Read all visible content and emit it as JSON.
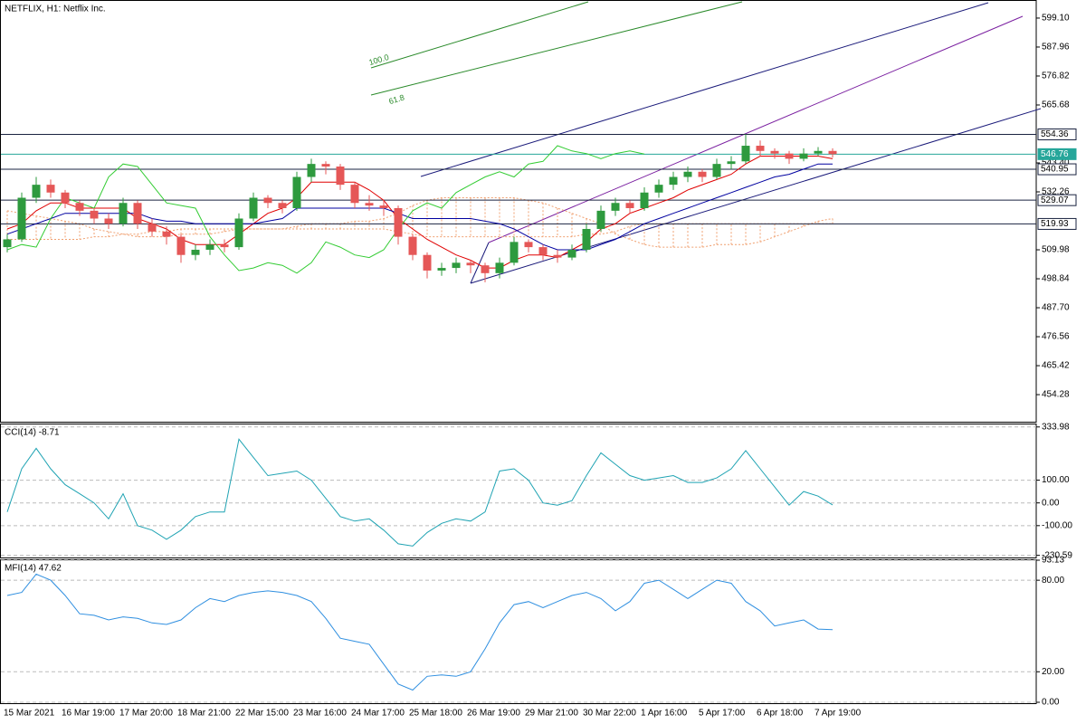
{
  "chart_data": [
    {
      "type": "candlestick",
      "title": "NETFLIX, H1:  Netflix Inc.",
      "categories": [
        "15 Mar 2021",
        null,
        null,
        null,
        "16 Mar 19:00",
        null,
        null,
        null,
        "17 Mar 20:00",
        null,
        null,
        null,
        "18 Mar 21:00",
        null,
        null,
        null,
        "22 Mar 15:00",
        null,
        null,
        null,
        "23 Mar 16:00",
        null,
        null,
        null,
        "24 Mar 17:00",
        null,
        null,
        null,
        "25 Mar 18:00",
        null,
        null,
        null,
        "26 Mar 19:00",
        null,
        null,
        null,
        "29 Mar 21:00",
        null,
        null,
        null,
        "30 Mar 22:00",
        null,
        null,
        null,
        "1 Apr 16:00",
        null,
        null,
        null,
        "5 Apr 17:00",
        null,
        null,
        null,
        "6 Apr 18:00",
        null,
        null,
        null,
        "7 Apr 19:00",
        null
      ],
      "open": [
        511,
        514,
        530,
        535,
        532,
        528,
        525,
        522,
        520,
        528,
        520,
        517,
        515,
        508,
        510,
        512,
        511,
        522,
        530,
        528,
        526,
        538,
        543,
        542,
        535,
        528,
        527,
        526,
        515,
        508,
        502,
        503,
        505,
        504,
        501,
        505,
        513,
        511,
        508,
        507,
        510,
        518,
        525,
        528,
        526,
        532,
        535,
        538,
        540,
        538,
        543,
        544,
        550,
        548,
        547,
        545,
        547,
        548
      ],
      "high": [
        516,
        532,
        538,
        537,
        533,
        529,
        526,
        524,
        530,
        529,
        522,
        519,
        516,
        512,
        514,
        514,
        524,
        532,
        531,
        529,
        540,
        545,
        544,
        543,
        536,
        531,
        529,
        527,
        516,
        509,
        505,
        507,
        506,
        505,
        507,
        515,
        514,
        512,
        510,
        512,
        520,
        527,
        530,
        529,
        534,
        537,
        540,
        542,
        541,
        545,
        546,
        554.4,
        552,
        549,
        548,
        549,
        549.5,
        549
      ],
      "low": [
        509,
        513,
        528,
        530,
        526,
        523,
        520,
        518,
        519,
        518,
        515,
        512,
        505,
        506,
        508,
        509,
        510,
        521,
        526,
        524,
        525,
        536,
        539,
        533,
        526,
        525,
        523,
        512,
        506,
        499,
        500,
        501,
        501,
        497.5,
        499,
        504,
        509,
        506,
        505,
        506,
        509,
        517,
        523,
        524,
        525,
        530,
        533,
        536,
        536,
        537,
        541,
        543,
        546,
        545,
        543,
        544,
        546,
        545.5
      ],
      "close": [
        514,
        530,
        535,
        532,
        528,
        525,
        522,
        520,
        528,
        520,
        517,
        515,
        508,
        510,
        512,
        511,
        522,
        530,
        528,
        526,
        538,
        543,
        542,
        535,
        528,
        527,
        526,
        515,
        508,
        502,
        503,
        505,
        504,
        501,
        505,
        513,
        511,
        508,
        507,
        510,
        518,
        525,
        528,
        526,
        532,
        535,
        538,
        540,
        538,
        543,
        544,
        550,
        548,
        547,
        545,
        547,
        548,
        546.76
      ],
      "up_color": "#2e9a3e",
      "down_color": "#e55757",
      "lines": [
        {
          "color": "#e00000",
          "values": [
            518,
            520,
            525,
            528,
            528,
            526,
            526,
            526,
            526,
            522,
            520,
            518,
            514,
            512,
            512,
            512,
            516,
            520,
            524,
            526,
            530,
            536,
            536,
            536,
            536,
            533,
            529,
            522,
            518,
            514,
            511,
            508,
            506,
            503,
            503,
            506,
            508,
            508,
            507,
            510,
            513,
            518,
            520,
            524,
            526,
            528,
            530,
            533,
            535,
            537,
            539,
            543,
            546,
            546,
            546,
            546,
            546,
            545
          ]
        },
        {
          "color": "#0000a0",
          "values": [
            516,
            518,
            520,
            522,
            524,
            524,
            524,
            524,
            524,
            524,
            522,
            521,
            521,
            520,
            520,
            520,
            520,
            520,
            521,
            522,
            526,
            526,
            526,
            526,
            526,
            526,
            526,
            524,
            522,
            522,
            522,
            522,
            522,
            521,
            520,
            518,
            515,
            512,
            510,
            510,
            510,
            512,
            514,
            517,
            520,
            522,
            524,
            526,
            528,
            530,
            532,
            534,
            536,
            538,
            539,
            541,
            543,
            543
          ]
        },
        {
          "color": "#33cc33",
          "values": [
            510,
            512,
            511,
            522,
            530,
            528,
            526,
            538,
            543,
            542,
            535,
            528,
            527,
            526,
            515,
            508,
            502,
            503,
            505,
            504,
            501,
            505,
            513,
            511,
            508,
            507,
            510,
            518,
            525,
            528,
            526,
            532,
            535,
            538,
            540,
            538,
            543,
            544,
            550,
            548,
            547,
            545,
            547,
            548,
            546.76,
            null,
            null,
            null,
            null,
            null,
            null,
            null,
            null,
            null,
            null,
            null,
            null,
            null
          ]
        }
      ],
      "cloud": {
        "color": "#f0a070",
        "span_a": [
          525,
          524,
          523,
          522,
          521,
          520,
          518,
          517,
          516,
          515,
          515,
          515,
          516,
          516,
          516,
          517,
          518,
          518,
          518,
          518,
          519,
          520,
          520,
          520,
          521,
          521,
          522,
          524,
          527,
          529,
          530,
          530,
          530,
          530,
          530,
          530,
          529,
          528,
          526,
          524,
          522,
          520,
          516,
          514,
          512,
          511,
          511,
          511,
          511,
          512,
          512,
          512,
          513,
          515,
          517,
          519,
          521,
          522
        ],
        "span_b": [
          514,
          514,
          514,
          514,
          514,
          514,
          515,
          515,
          516,
          516,
          517,
          517,
          518,
          518,
          518,
          518,
          518,
          518,
          518,
          518,
          518,
          518,
          518,
          518,
          518,
          518,
          518,
          517,
          516,
          515,
          515,
          515,
          515,
          515,
          515,
          515,
          515,
          515,
          515,
          515,
          516,
          516,
          517,
          519,
          520,
          520,
          520,
          520,
          520,
          520,
          520,
          520,
          520,
          520,
          520,
          520,
          520,
          520
        ]
      },
      "levels": [
        {
          "value": 554.36,
          "color": "#1a2340"
        },
        {
          "value": 546.76,
          "color": "#26a69a",
          "filled": true
        },
        {
          "value": 540.95,
          "color": "#1a2340"
        },
        {
          "value": 529.07,
          "color": "#1a2340"
        },
        {
          "value": 519.93,
          "color": "#1a2340"
        }
      ],
      "annotations": [
        {
          "text": "100.0"
        },
        {
          "text": "61.8"
        }
      ],
      "ylim": [
        443.86,
        605.7
      ],
      "yticks": [
        {
          "value": 599.1,
          "label": "599.10"
        },
        587.96,
        576.82,
        565.68,
        {
          "value": 543.4,
          "label": "543.40"
        },
        532.26,
        509.98,
        498.84,
        {
          "value": 487.7,
          "label": "487.70"
        },
        476.56,
        465.42,
        454.28
      ],
      "grid": false
    },
    {
      "type": "line",
      "title": "CCI(14) -8.71",
      "color": "#1fa3b3",
      "values": [
        -40,
        150,
        240,
        150,
        80,
        40,
        0,
        -70,
        40,
        -100,
        -120,
        -160,
        -120,
        -60,
        -40,
        -40,
        280,
        200,
        120,
        130,
        140,
        100,
        20,
        -60,
        -80,
        -70,
        -120,
        -180,
        -190,
        -130,
        -90,
        -70,
        -80,
        -40,
        140,
        150,
        100,
        0,
        -10,
        10,
        120,
        220,
        170,
        120,
        100,
        110,
        120,
        90,
        90,
        110,
        150,
        230,
        150,
        70,
        -10,
        50,
        30,
        -8.71
      ],
      "ylim": [
        -240,
        345
      ],
      "yticks": [
        333.98,
        {
          "value": 100,
          "label": "100.00"
        },
        {
          "value": 0,
          "label": "0.00"
        },
        {
          "value": -100,
          "label": "-100.00"
        },
        -230.59
      ],
      "grid": true
    },
    {
      "type": "line",
      "title": "MFI(14) 47.62",
      "color": "#2f8fe0",
      "values": [
        70,
        72,
        84,
        80,
        70,
        58,
        57,
        54,
        56,
        55,
        52,
        51,
        54,
        62,
        68,
        66,
        70,
        72,
        73,
        72,
        70,
        66,
        55,
        42,
        40,
        38,
        25,
        12,
        8,
        17,
        18,
        17,
        20,
        35,
        52,
        64,
        66,
        62,
        66,
        70,
        72,
        68,
        60,
        66,
        78,
        80,
        74,
        68,
        74,
        80,
        78,
        66,
        60,
        50,
        52,
        54,
        48,
        47.62
      ],
      "ylim": [
        0,
        93.13
      ],
      "yticks": [
        93.13,
        {
          "value": 80,
          "label": "80.00"
        },
        {
          "value": 20,
          "label": "20.00"
        },
        {
          "value": 0,
          "label": "0.00"
        }
      ],
      "grid": true
    }
  ]
}
